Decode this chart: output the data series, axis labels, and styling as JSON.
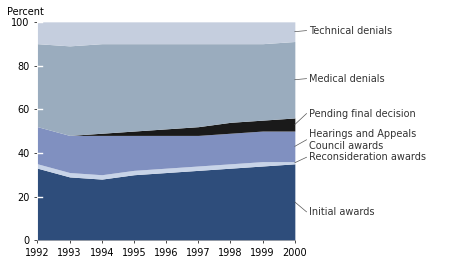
{
  "years": [
    1992,
    1993,
    1994,
    1995,
    1996,
    1997,
    1998,
    1999,
    2000
  ],
  "initial_awards": [
    33,
    29,
    28,
    30,
    31,
    32,
    33,
    34,
    35
  ],
  "reconsideration_awards": [
    2,
    2,
    2,
    2,
    2,
    2,
    2,
    2,
    1
  ],
  "hac_awards": [
    17,
    17,
    18,
    16,
    15,
    14,
    14,
    14,
    14
  ],
  "pending_final": [
    0,
    0,
    1,
    2,
    3,
    4,
    5,
    5,
    6
  ],
  "medical_denials": [
    38,
    41,
    41,
    40,
    39,
    38,
    36,
    35,
    35
  ],
  "technical_denials": [
    10,
    11,
    10,
    10,
    10,
    10,
    10,
    10,
    9
  ],
  "colors": {
    "initial_awards": "#2e4d7b",
    "reconsideration_awards": "#c8d4e8",
    "hac_awards": "#8090c0",
    "pending_final": "#1a1a1a",
    "medical_denials": "#9aacbe",
    "technical_denials": "#c5cede"
  },
  "ylabel": "Percent",
  "ylim": [
    0,
    100
  ],
  "yticks": [
    0,
    20,
    40,
    60,
    80,
    100
  ],
  "background_color": "#ffffff",
  "label_fontsize": 7,
  "tick_fontsize": 7,
  "annotation_labels": {
    "technical_denials": "Technical denials",
    "medical_denials": "Medical denials",
    "pending_final": "Pending final decision",
    "hac_awards": "Hearings and Appeals\nCouncil awards",
    "reconsideration_awards": "Reconsideration awards",
    "initial_awards": "Initial awards"
  },
  "label_ypos": {
    "technical_denials": 96,
    "medical_denials": 74,
    "pending_final": 58,
    "hac_awards": 46,
    "reconsideration_awards": 38,
    "initial_awards": 13
  }
}
